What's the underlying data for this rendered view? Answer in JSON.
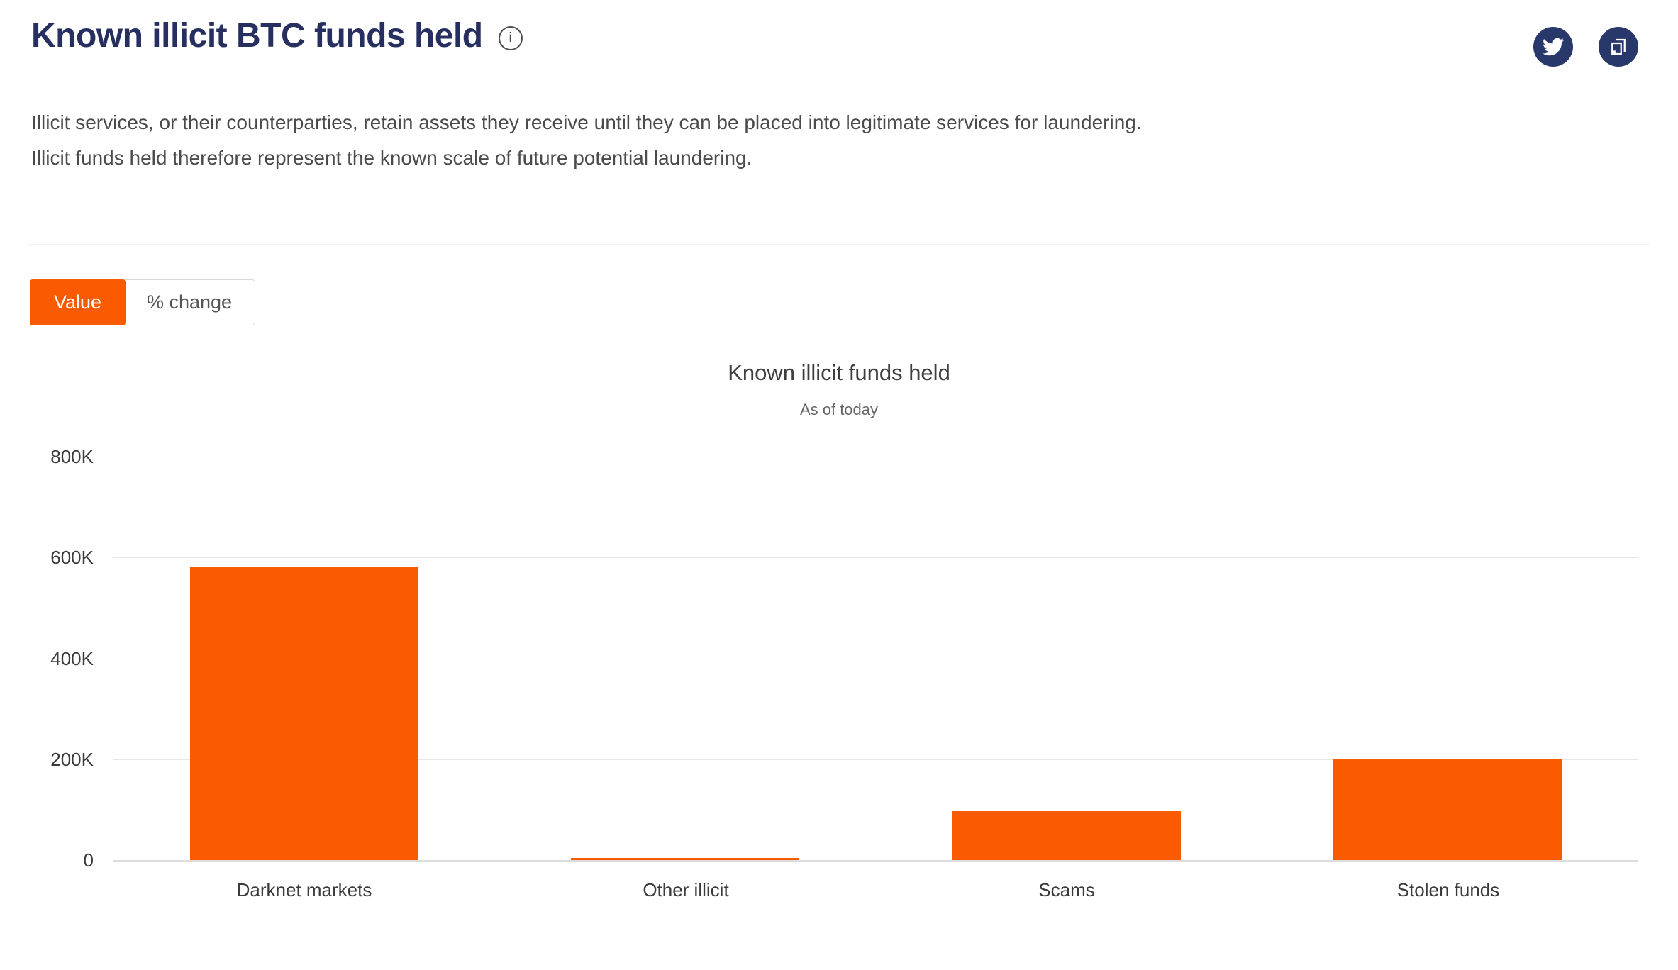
{
  "page": {
    "title": "Known illicit BTC funds held",
    "description_line1": "Illicit services, or their counterparties, retain assets they receive until they can be placed into legitimate services for laundering.",
    "description_line2": "Illicit funds held therefore represent the known scale of future potential laundering.",
    "info_icon": "info-circle-icon"
  },
  "header_actions": {
    "twitter_icon": "twitter-bird-icon",
    "copy_icon": "copy-pages-icon",
    "button_color": "#28386b"
  },
  "toggle": {
    "value_label": "Value",
    "percent_label": "% change",
    "active": "Value",
    "active_color": "#fa5a00",
    "inactive_text_color": "#555555"
  },
  "chart_data": {
    "type": "bar",
    "title": "Known illicit funds held",
    "subtitle": "As of today",
    "categories": [
      "Darknet markets",
      "Other illicit",
      "Scams",
      "Stolen funds"
    ],
    "values": [
      580000,
      4000,
      97000,
      200000
    ],
    "bar_color": "#fa5a00",
    "xlabel": "",
    "ylabel": "",
    "ylim": [
      0,
      800000
    ],
    "yticks": [
      {
        "value": 0,
        "label": "0"
      },
      {
        "value": 200000,
        "label": "200K"
      },
      {
        "value": 400000,
        "label": "400K"
      },
      {
        "value": 600000,
        "label": "600K"
      },
      {
        "value": 800000,
        "label": "800K"
      }
    ],
    "grid": true,
    "legend_position": "none"
  },
  "colors": {
    "brand_navy": "#272f61",
    "accent_orange": "#fa5a00",
    "body_text": "#4b4b4b",
    "axis_text": "#3b3b3b",
    "gridline": "#e7e7e7"
  }
}
